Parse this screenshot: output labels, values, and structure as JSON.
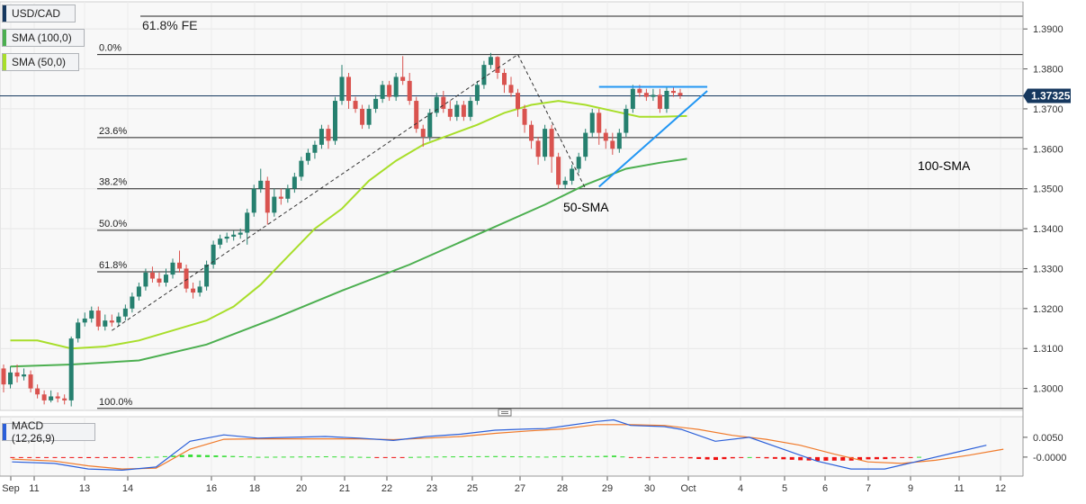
{
  "legend": {
    "symbol": "USD/CAD",
    "sma100": "SMA (100,0)",
    "sma50": "SMA (50,0)",
    "macd": "MACD (12,26,9)"
  },
  "colors": {
    "up": "#26806f",
    "down": "#d9534f",
    "sma50": "#a8de2a",
    "sma100": "#4caf50",
    "trend": "#2196f3",
    "macd_line": "#2b5fd9",
    "signal_line": "#f07a2a",
    "hist_pos": "#33dd33",
    "hist_neg": "#ee1111",
    "price_tag": "#16385f"
  },
  "chart_data": {
    "type": "candlestick",
    "price_axis": {
      "ticks": [
        "1.3900",
        "1.3800",
        "1.3700",
        "1.3600",
        "1.3500",
        "1.3400",
        "1.3300",
        "1.3200",
        "1.3100",
        "1.3000"
      ],
      "range": [
        1.2945,
        1.3968
      ]
    },
    "current_price": "1.37325",
    "x_axis_labels": [
      "Sep",
      "11",
      "13",
      "14",
      "16",
      "18",
      "20",
      "21",
      "22",
      "23",
      "25",
      "27",
      "28",
      "29",
      "30",
      "Oct",
      "4",
      "5",
      "6",
      "7",
      "9",
      "11",
      "12"
    ],
    "fib_levels": [
      {
        "label": "61.8% FE",
        "price": 1.3932
      },
      {
        "label": "0.0%",
        "price": 1.3836
      },
      {
        "label": "23.6%",
        "price": 1.3628
      },
      {
        "label": "38.2%",
        "price": 1.35
      },
      {
        "label": "50.0%",
        "price": 1.3396
      },
      {
        "label": "61.8%",
        "price": 1.3292
      },
      {
        "label": "100.0%",
        "price": 1.295
      }
    ],
    "annotations": {
      "sma50": "50-SMA",
      "sma100": "100-SMA"
    },
    "candles": [
      [
        1.305,
        1.301,
        1.306,
        1.299
      ],
      [
        1.301,
        1.304,
        1.3055,
        1.3
      ],
      [
        1.304,
        1.303,
        1.306,
        1.3015
      ],
      [
        1.303,
        1.3035,
        1.305,
        1.302
      ],
      [
        1.3035,
        1.3,
        1.3045,
        1.299
      ],
      [
        1.3,
        1.2985,
        1.301,
        1.2975
      ],
      [
        1.2985,
        1.297,
        1.2995,
        1.296
      ],
      [
        1.297,
        1.298,
        1.2995,
        1.2965
      ],
      [
        1.298,
        1.2975,
        1.299,
        1.2965
      ],
      [
        1.2975,
        1.297,
        1.2985,
        1.296
      ],
      [
        1.297,
        1.3125,
        1.313,
        1.2955
      ],
      [
        1.3125,
        1.3165,
        1.3175,
        1.3115
      ],
      [
        1.3165,
        1.3175,
        1.319,
        1.3155
      ],
      [
        1.3175,
        1.3195,
        1.3205,
        1.3165
      ],
      [
        1.3195,
        1.3155,
        1.3205,
        1.3145
      ],
      [
        1.3155,
        1.317,
        1.3185,
        1.3145
      ],
      [
        1.317,
        1.3165,
        1.3185,
        1.3155
      ],
      [
        1.3165,
        1.318,
        1.319,
        1.3155
      ],
      [
        1.318,
        1.32,
        1.321,
        1.317
      ],
      [
        1.32,
        1.323,
        1.324,
        1.319
      ],
      [
        1.323,
        1.3255,
        1.3265,
        1.322
      ],
      [
        1.3255,
        1.329,
        1.33,
        1.3245
      ],
      [
        1.329,
        1.3275,
        1.3305,
        1.3265
      ],
      [
        1.3275,
        1.3265,
        1.329,
        1.3255
      ],
      [
        1.3265,
        1.3285,
        1.33,
        1.3255
      ],
      [
        1.3285,
        1.3315,
        1.3325,
        1.3275
      ],
      [
        1.3315,
        1.33,
        1.3345,
        1.329
      ],
      [
        1.33,
        1.325,
        1.331,
        1.324
      ],
      [
        1.325,
        1.324,
        1.3265,
        1.3225
      ],
      [
        1.324,
        1.3255,
        1.327,
        1.323
      ],
      [
        1.3255,
        1.331,
        1.332,
        1.3245
      ],
      [
        1.331,
        1.336,
        1.337,
        1.33
      ],
      [
        1.336,
        1.3375,
        1.3385,
        1.335
      ],
      [
        1.3375,
        1.338,
        1.339,
        1.3365
      ],
      [
        1.338,
        1.3385,
        1.3395,
        1.337
      ],
      [
        1.3385,
        1.339,
        1.34,
        1.3375
      ],
      [
        1.339,
        1.344,
        1.345,
        1.336
      ],
      [
        1.344,
        1.35,
        1.351,
        1.343
      ],
      [
        1.35,
        1.352,
        1.355,
        1.349
      ],
      [
        1.352,
        1.344,
        1.353,
        1.341
      ],
      [
        1.344,
        1.348,
        1.35,
        1.343
      ],
      [
        1.348,
        1.3475,
        1.35,
        1.346
      ],
      [
        1.3475,
        1.35,
        1.351,
        1.3465
      ],
      [
        1.35,
        1.353,
        1.354,
        1.349
      ],
      [
        1.353,
        1.357,
        1.358,
        1.352
      ],
      [
        1.357,
        1.359,
        1.36,
        1.356
      ],
      [
        1.359,
        1.361,
        1.362,
        1.3575
      ],
      [
        1.361,
        1.365,
        1.366,
        1.36
      ],
      [
        1.365,
        1.362,
        1.366,
        1.36
      ],
      [
        1.362,
        1.372,
        1.373,
        1.361
      ],
      [
        1.372,
        1.378,
        1.381,
        1.371
      ],
      [
        1.378,
        1.372,
        1.379,
        1.37
      ],
      [
        1.372,
        1.37,
        1.373,
        1.369
      ],
      [
        1.37,
        1.366,
        1.371,
        1.365
      ],
      [
        1.366,
        1.37,
        1.371,
        1.365
      ],
      [
        1.37,
        1.3725,
        1.3735,
        1.369
      ],
      [
        1.3725,
        1.376,
        1.377,
        1.3715
      ],
      [
        1.376,
        1.373,
        1.377,
        1.372
      ],
      [
        1.373,
        1.378,
        1.379,
        1.372
      ],
      [
        1.378,
        1.377,
        1.3832,
        1.376
      ],
      [
        1.377,
        1.372,
        1.379,
        1.371
      ],
      [
        1.372,
        1.365,
        1.373,
        1.364
      ],
      [
        1.365,
        1.363,
        1.366,
        1.3605
      ],
      [
        1.363,
        1.369,
        1.37,
        1.362
      ],
      [
        1.369,
        1.373,
        1.374,
        1.368
      ],
      [
        1.373,
        1.37,
        1.3745,
        1.369
      ],
      [
        1.37,
        1.368,
        1.372,
        1.367
      ],
      [
        1.368,
        1.371,
        1.372,
        1.367
      ],
      [
        1.371,
        1.368,
        1.372,
        1.367
      ],
      [
        1.368,
        1.372,
        1.373,
        1.367
      ],
      [
        1.372,
        1.376,
        1.377,
        1.371
      ],
      [
        1.376,
        1.381,
        1.382,
        1.375
      ],
      [
        1.381,
        1.383,
        1.384,
        1.38
      ],
      [
        1.383,
        1.379,
        1.3832,
        1.3775
      ],
      [
        1.379,
        1.376,
        1.38,
        1.374
      ],
      [
        1.376,
        1.374,
        1.378,
        1.373
      ],
      [
        1.374,
        1.37,
        1.375,
        1.368
      ],
      [
        1.37,
        1.366,
        1.371,
        1.364
      ],
      [
        1.366,
        1.362,
        1.367,
        1.36
      ],
      [
        1.362,
        1.358,
        1.363,
        1.356
      ],
      [
        1.358,
        1.365,
        1.366,
        1.357
      ],
      [
        1.365,
        1.358,
        1.366,
        1.354
      ],
      [
        1.358,
        1.351,
        1.359,
        1.35
      ],
      [
        1.351,
        1.352,
        1.353,
        1.35
      ],
      [
        1.352,
        1.355,
        1.356,
        1.351
      ],
      [
        1.355,
        1.358,
        1.359,
        1.354
      ],
      [
        1.358,
        1.364,
        1.365,
        1.357
      ],
      [
        1.364,
        1.369,
        1.37,
        1.363
      ],
      [
        1.369,
        1.364,
        1.37,
        1.361
      ],
      [
        1.364,
        1.362,
        1.365,
        1.36
      ],
      [
        1.362,
        1.36,
        1.364,
        1.3585
      ],
      [
        1.36,
        1.364,
        1.365,
        1.359
      ],
      [
        1.364,
        1.37,
        1.371,
        1.363
      ],
      [
        1.37,
        1.375,
        1.376,
        1.369
      ],
      [
        1.375,
        1.374,
        1.376,
        1.373
      ],
      [
        1.374,
        1.373,
        1.375,
        1.372
      ],
      [
        1.373,
        1.3735,
        1.375,
        1.372
      ],
      [
        1.3735,
        1.37,
        1.375,
        1.369
      ],
      [
        1.37,
        1.3745,
        1.3755,
        1.369
      ],
      [
        1.3745,
        1.374,
        1.3755,
        1.373
      ],
      [
        1.374,
        1.3733,
        1.375,
        1.3725
      ]
    ],
    "sma50": [
      [
        1,
        1.312
      ],
      [
        5,
        1.312
      ],
      [
        10,
        1.31
      ],
      [
        15,
        1.3105
      ],
      [
        20,
        1.312
      ],
      [
        25,
        1.3145
      ],
      [
        30,
        1.317
      ],
      [
        34,
        1.3205
      ],
      [
        38,
        1.326
      ],
      [
        42,
        1.333
      ],
      [
        46,
        1.34
      ],
      [
        50,
        1.345
      ],
      [
        54,
        1.352
      ],
      [
        58,
        1.357
      ],
      [
        62,
        1.361
      ],
      [
        66,
        1.3635
      ],
      [
        70,
        1.366
      ],
      [
        74,
        1.369
      ],
      [
        78,
        1.371
      ],
      [
        82,
        1.372
      ],
      [
        86,
        1.371
      ],
      [
        90,
        1.3695
      ],
      [
        94,
        1.368
      ],
      [
        97,
        1.368
      ],
      [
        101,
        1.3682
      ]
    ],
    "sma100": [
      [
        1,
        1.3055
      ],
      [
        10,
        1.306
      ],
      [
        20,
        1.307
      ],
      [
        30,
        1.311
      ],
      [
        40,
        1.3175
      ],
      [
        50,
        1.3245
      ],
      [
        60,
        1.331
      ],
      [
        70,
        1.3385
      ],
      [
        80,
        1.346
      ],
      [
        86,
        1.351
      ],
      [
        92,
        1.355
      ],
      [
        97,
        1.3565
      ],
      [
        101,
        1.3575
      ]
    ],
    "trendlines": [
      {
        "name": "horizontal-resistance",
        "points": [
          [
            88,
            1.3755
          ],
          [
            104,
            1.3755
          ]
        ]
      },
      {
        "name": "ascending-support",
        "points": [
          [
            88,
            1.3505
          ],
          [
            104,
            1.3745
          ]
        ]
      },
      {
        "name": "rise-dashed",
        "points": [
          [
            16,
            1.3145
          ],
          [
            76,
            1.3836
          ]
        ]
      },
      {
        "name": "fall-dashed",
        "points": [
          [
            76,
            1.3836
          ],
          [
            86,
            1.35
          ]
        ]
      }
    ],
    "macd": {
      "ticks": [
        "0.0050",
        "-0.0000"
      ],
      "range": [
        -0.0048,
        0.0102
      ],
      "macd_line": [
        [
          1,
          -0.0012
        ],
        [
          6,
          -0.0016
        ],
        [
          10,
          -0.003
        ],
        [
          14,
          -0.0033
        ],
        [
          18,
          -0.0025
        ],
        [
          22,
          0.004
        ],
        [
          26,
          0.0056
        ],
        [
          30,
          0.0048
        ],
        [
          34,
          0.005
        ],
        [
          38,
          0.0052
        ],
        [
          42,
          0.0048
        ],
        [
          46,
          0.0042
        ],
        [
          50,
          0.0052
        ],
        [
          54,
          0.0058
        ],
        [
          58,
          0.0068
        ],
        [
          62,
          0.0071
        ],
        [
          64,
          0.0072
        ],
        [
          66,
          0.0078
        ],
        [
          70,
          0.009
        ],
        [
          72,
          0.0094
        ],
        [
          74,
          0.008
        ],
        [
          78,
          0.0077
        ],
        [
          80,
          0.007
        ],
        [
          84,
          0.004
        ],
        [
          88,
          0.005
        ],
        [
          92,
          0.002
        ],
        [
          96,
          -0.001
        ],
        [
          100,
          -0.003
        ],
        [
          104,
          -0.003
        ],
        [
          108,
          -0.001
        ],
        [
          112,
          0.001
        ],
        [
          116,
          0.003
        ]
      ],
      "signal_line": [
        [
          1,
          -0.0005
        ],
        [
          6,
          -0.001
        ],
        [
          10,
          -0.0022
        ],
        [
          14,
          -0.003
        ],
        [
          18,
          -0.0028
        ],
        [
          22,
          0.002
        ],
        [
          26,
          0.0045
        ],
        [
          30,
          0.0046
        ],
        [
          34,
          0.0046
        ],
        [
          38,
          0.0046
        ],
        [
          42,
          0.0046
        ],
        [
          46,
          0.0044
        ],
        [
          50,
          0.0048
        ],
        [
          54,
          0.0052
        ],
        [
          58,
          0.006
        ],
        [
          62,
          0.0066
        ],
        [
          66,
          0.0071
        ],
        [
          70,
          0.0082
        ],
        [
          74,
          0.0082
        ],
        [
          78,
          0.008
        ],
        [
          82,
          0.007
        ],
        [
          86,
          0.0055
        ],
        [
          90,
          0.0045
        ],
        [
          94,
          0.003
        ],
        [
          98,
          0.0008
        ],
        [
          102,
          -0.0012
        ],
        [
          106,
          -0.0016
        ],
        [
          110,
          -0.0008
        ],
        [
          114,
          0.0005
        ],
        [
          118,
          0.002
        ]
      ]
    }
  }
}
